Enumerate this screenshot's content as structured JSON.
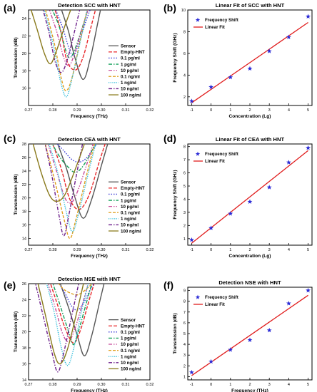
{
  "chart_data": [
    {
      "id": "a",
      "panel_label": "(a)",
      "type": "line",
      "title": "Detection SCC with HNT",
      "xlabel": "Frequency (THz)",
      "ylabel": "Transmission (dB)",
      "xlim": [
        0.27,
        0.32
      ],
      "ylim": [
        14,
        25
      ],
      "xticks": [
        "0.27",
        "0.28",
        "0.29",
        "0.30",
        "0.31",
        "0.32"
      ],
      "yticks": [
        "16",
        "18",
        "20",
        "22",
        "24"
      ],
      "legend_position": "right",
      "series": [
        {
          "name": "Sensor",
          "color": "#555555",
          "dash": "",
          "x": [
            0.283,
            0.2865,
            0.289,
            0.2925,
            0.2955,
            0.2985,
            0.3
          ],
          "y": [
            25.5,
            22.5,
            19.6,
            17.0,
            19.5,
            23.5,
            25.5
          ]
        },
        {
          "name": "Empty-HNT",
          "color": "#e8282b",
          "dash": "5,2",
          "x": [
            0.2805,
            0.2835,
            0.286,
            0.2895,
            0.2925,
            0.2955,
            0.298
          ],
          "y": [
            25.5,
            22.3,
            19.0,
            18.1,
            19.6,
            22.8,
            25.5
          ]
        },
        {
          "name": "0.1 pg/ml",
          "color": "#3b3bd6",
          "dash": "1.5,2",
          "x": [
            0.2805,
            0.284,
            0.2865,
            0.2885,
            0.2905,
            0.2935,
            0.296
          ],
          "y": [
            25.5,
            23.0,
            20.7,
            19.7,
            21.0,
            23.6,
            25.5
          ]
        },
        {
          "name": "1 pg/ml",
          "color": "#14a05a",
          "dash": "5,2,1.5,2",
          "x": [
            0.279,
            0.2825,
            0.2855,
            0.287,
            0.289,
            0.2925,
            0.295
          ],
          "y": [
            25.5,
            23.2,
            20.2,
            19.5,
            20.4,
            23.3,
            25.5
          ]
        },
        {
          "name": "10 pg/ml",
          "color": "#c84b9a",
          "dash": "5,2,1.5,2,1.5,2",
          "x": [
            0.278,
            0.2815,
            0.2845,
            0.2865,
            0.2885,
            0.292,
            0.295
          ],
          "y": [
            25.5,
            22.6,
            19.5,
            18.6,
            19.6,
            22.8,
            25.5
          ]
        },
        {
          "name": "0.1 ng/ml",
          "color": "#e0a020",
          "dash": "4,2",
          "x": [
            0.2765,
            0.2805,
            0.2835,
            0.2855,
            0.288,
            0.2915,
            0.2945
          ],
          "y": [
            25.5,
            21.3,
            17.1,
            15.7,
            17.3,
            21.8,
            25.5
          ]
        },
        {
          "name": "1 ng/ml",
          "color": "#22b8d8",
          "dash": "1.2,1.5",
          "x": [
            0.276,
            0.28,
            0.283,
            0.2855,
            0.288,
            0.2915,
            0.2945
          ],
          "y": [
            25.5,
            21.2,
            17.0,
            15.0,
            17.2,
            21.6,
            25.5
          ]
        },
        {
          "name": "10 ng/ml",
          "color": "#6b1d8a",
          "dash": "5,2,1.5,2",
          "x": [
            0.2755,
            0.2785,
            0.281,
            0.2835,
            0.286,
            0.289,
            0.2915
          ],
          "y": [
            25.5,
            22.3,
            19.0,
            17.8,
            19.3,
            22.6,
            25.5
          ]
        },
        {
          "name": "100 ng/ml",
          "color": "#8a7a1c",
          "dash": "",
          "x": [
            0.2705,
            0.2735,
            0.2765,
            0.279,
            0.2815,
            0.285,
            0.288
          ],
          "y": [
            25.5,
            22.8,
            20.0,
            18.8,
            20.3,
            23.2,
            25.5
          ]
        }
      ]
    },
    {
      "id": "b",
      "panel_label": "(b)",
      "type": "scatter",
      "title": "Linear Fit of SCC with HNT",
      "xlabel": "Concentration (Lg)",
      "ylabel": "Frequency Shift (GHz)",
      "xlim": [
        -1.2,
        5.2
      ],
      "ylim": [
        1.2,
        10
      ],
      "xticks": [
        "-1",
        "0",
        "1",
        "2",
        "3",
        "4",
        "5"
      ],
      "yticks": [
        "2",
        "4",
        "6",
        "8",
        "10"
      ],
      "legend_position": "top-left",
      "series": [
        {
          "name": "Frequency Shift",
          "color": "#2b2bd6",
          "x": [
            -1,
            0,
            1,
            2,
            3,
            4,
            5
          ],
          "y": [
            1.6,
            2.9,
            3.8,
            4.6,
            6.2,
            7.5,
            9.4
          ]
        },
        {
          "name": "Linear Fit",
          "color": "#e01b1b",
          "x": [
            -1,
            5
          ],
          "y": [
            1.45,
            8.85
          ]
        }
      ]
    },
    {
      "id": "c",
      "panel_label": "(c)",
      "type": "line",
      "title": "Detection CEA with HNT",
      "xlabel": "Frequency (THz)",
      "ylabel": "Transmission (dB)",
      "xlim": [
        0.27,
        0.32
      ],
      "ylim": [
        13,
        28
      ],
      "xticks": [
        "0.27",
        "0.28",
        "0.29",
        "0.30",
        "0.31",
        "0.32"
      ],
      "yticks": [
        "14",
        "16",
        "18",
        "20",
        "22",
        "24",
        "26",
        "28"
      ],
      "legend_position": "right",
      "series": [
        {
          "name": "Sensor",
          "color": "#555555",
          "dash": "",
          "x": [
            0.2815,
            0.2855,
            0.289,
            0.2925,
            0.296,
            0.3,
            0.303
          ],
          "y": [
            28.5,
            24.5,
            20.2,
            17.0,
            19.8,
            24.8,
            28.5
          ]
        },
        {
          "name": "Empty-HNT",
          "color": "#e8282b",
          "dash": "5,2",
          "x": [
            0.2795,
            0.2835,
            0.287,
            0.291,
            0.295,
            0.299,
            0.302
          ],
          "y": [
            28.5,
            24.3,
            19.8,
            18.3,
            20.5,
            25.2,
            28.5
          ]
        },
        {
          "name": "0.1 pg/ml",
          "color": "#3b3bd6",
          "dash": "1.5,2",
          "x": [
            0.2805,
            0.2845,
            0.2875,
            0.2905,
            0.2935,
            0.2965,
            0.299
          ],
          "y": [
            28.5,
            27.0,
            25.8,
            25.3,
            25.8,
            27.2,
            28.5
          ]
        },
        {
          "name": "1 pg/ml",
          "color": "#14a05a",
          "dash": "5,2,1.5,2",
          "x": [
            0.279,
            0.283,
            0.2865,
            0.289,
            0.2915,
            0.295,
            0.298
          ],
          "y": [
            28.5,
            26.0,
            24.5,
            23.8,
            24.3,
            26.2,
            28.5
          ]
        },
        {
          "name": "10 pg/ml",
          "color": "#c84b9a",
          "dash": "5,2,1.5,2,1.5,2",
          "x": [
            0.2775,
            0.2815,
            0.285,
            0.2875,
            0.29,
            0.294,
            0.297
          ],
          "y": [
            28.5,
            24.0,
            20.0,
            19.3,
            20.8,
            25.0,
            28.5
          ]
        },
        {
          "name": "0.1 ng/ml",
          "color": "#e0a020",
          "dash": "4,2",
          "x": [
            0.2765,
            0.2805,
            0.2845,
            0.287,
            0.2895,
            0.2935,
            0.2975
          ],
          "y": [
            28.5,
            23.0,
            17.0,
            14.0,
            16.8,
            22.8,
            28.5
          ]
        },
        {
          "name": "1 ng/ml",
          "color": "#22b8d8",
          "dash": "1.2,1.5",
          "x": [
            0.278,
            0.282,
            0.2855,
            0.288,
            0.2905,
            0.2945,
            0.298
          ],
          "y": [
            28.5,
            23.8,
            18.0,
            15.0,
            17.5,
            23.5,
            28.5
          ]
        },
        {
          "name": "10 ng/ml",
          "color": "#6b1d8a",
          "dash": "5,2,1.5,2",
          "x": [
            0.2765,
            0.2795,
            0.2825,
            0.2845,
            0.2865,
            0.2895,
            0.2925
          ],
          "y": [
            28.5,
            23.5,
            17.5,
            14.4,
            17.3,
            23.0,
            28.5
          ]
        },
        {
          "name": "100 ng/ml",
          "color": "#8a7a1c",
          "dash": "",
          "x": [
            0.2715,
            0.275,
            0.2785,
            0.2815,
            0.285,
            0.2895,
            0.2935
          ],
          "y": [
            28.5,
            24.0,
            20.5,
            19.5,
            20.5,
            24.5,
            28.5
          ]
        }
      ]
    },
    {
      "id": "d",
      "panel_label": "(d)",
      "type": "scatter",
      "title": "Linear Fit of CEA with HNT",
      "xlabel": "Concentration (Lg)",
      "ylabel": "Frequency Shift (GHz)",
      "xlim": [
        -1.2,
        5.2
      ],
      "ylim": [
        0.5,
        8.2
      ],
      "xticks": [
        "-1",
        "0",
        "1",
        "2",
        "3",
        "4",
        "5"
      ],
      "yticks": [
        "1",
        "2",
        "3",
        "4",
        "5",
        "6",
        "7",
        "8"
      ],
      "legend_position": "top-left",
      "series": [
        {
          "name": "Frequency Shift",
          "color": "#2b2bd6",
          "x": [
            -1,
            0,
            1,
            2,
            3,
            4,
            5
          ],
          "y": [
            0.9,
            1.8,
            2.9,
            3.8,
            4.9,
            6.8,
            7.9
          ]
        },
        {
          "name": "Linear Fit",
          "color": "#e01b1b",
          "x": [
            -1,
            5
          ],
          "y": [
            0.65,
            7.7
          ]
        }
      ]
    },
    {
      "id": "e",
      "panel_label": "(e)",
      "type": "line",
      "title": "Detection NSE with HNT",
      "xlabel": "Frequency (THz)",
      "ylabel": "Transmission (dB)",
      "xlim": [
        0.27,
        0.32
      ],
      "ylim": [
        14,
        26
      ],
      "xticks": [
        "0.27",
        "0.28",
        "0.29",
        "0.30",
        "0.31",
        "0.32"
      ],
      "yticks": [
        "14",
        "16",
        "18",
        "20",
        "22",
        "24",
        "26"
      ],
      "legend_position": "right",
      "series": [
        {
          "name": "Sensor",
          "color": "#555555",
          "dash": "",
          "x": [
            0.2825,
            0.2865,
            0.29,
            0.293,
            0.296,
            0.2995,
            0.3015
          ],
          "y": [
            26.5,
            23.0,
            19.6,
            17.0,
            19.5,
            24.0,
            26.5
          ]
        },
        {
          "name": "Empty-HNT",
          "color": "#e8282b",
          "dash": "5,2",
          "x": [
            0.2785,
            0.282,
            0.285,
            0.2885,
            0.2915,
            0.295,
            0.2975
          ],
          "y": [
            26.5,
            23.3,
            20.5,
            18.6,
            20.3,
            24.0,
            26.5
          ]
        },
        {
          "name": "0.1 pg/ml",
          "color": "#3b3bd6",
          "dash": "1.5,2",
          "x": [
            0.2815,
            0.285,
            0.2875,
            0.29,
            0.2925,
            0.2955,
            0.298
          ],
          "y": [
            26.5,
            24.8,
            23.3,
            22.7,
            23.5,
            25.3,
            26.5
          ]
        },
        {
          "name": "1 pg/ml",
          "color": "#14a05a",
          "dash": "5,2,1.5,2",
          "x": [
            0.2795,
            0.283,
            0.2865,
            0.2885,
            0.2905,
            0.294,
            0.2965
          ],
          "y": [
            26.5,
            23.3,
            20.0,
            18.4,
            20.0,
            23.8,
            26.5
          ]
        },
        {
          "name": "10 pg/ml",
          "color": "#c84b9a",
          "dash": "5,2,1.5,2,1.5,2",
          "x": [
            0.2775,
            0.281,
            0.284,
            0.2865,
            0.289,
            0.2925,
            0.295
          ],
          "y": [
            26.5,
            23.0,
            19.8,
            18.8,
            20.3,
            23.8,
            26.5
          ]
        },
        {
          "name": "0.1 ng/ml",
          "color": "#e0a020",
          "dash": "4,2",
          "x": [
            0.281,
            0.2845,
            0.2875,
            0.29,
            0.2925,
            0.2955,
            0.298
          ],
          "y": [
            26.5,
            25.3,
            24.8,
            24.6,
            25.0,
            25.8,
            26.5
          ]
        },
        {
          "name": "1 ng/ml",
          "color": "#22b8d8",
          "dash": "1.2,1.5",
          "x": [
            0.277,
            0.2805,
            0.2835,
            0.286,
            0.2885,
            0.292,
            0.295
          ],
          "y": [
            26.5,
            22.5,
            18.0,
            15.8,
            17.8,
            22.8,
            26.5
          ]
        },
        {
          "name": "10 ng/ml",
          "color": "#6b1d8a",
          "dash": "5,2,1.5,2",
          "x": [
            0.2725,
            0.276,
            0.2795,
            0.282,
            0.2845,
            0.288,
            0.291
          ],
          "y": [
            26.5,
            22.0,
            17.6,
            15.0,
            17.4,
            22.3,
            26.5
          ]
        },
        {
          "name": "100 ng/ml",
          "color": "#8a7a1c",
          "dash": "",
          "x": [
            0.2735,
            0.277,
            0.2805,
            0.283,
            0.286,
            0.29,
            0.293
          ],
          "y": [
            26.5,
            22.0,
            17.4,
            16.0,
            17.8,
            22.6,
            26.5
          ]
        }
      ]
    },
    {
      "id": "f",
      "panel_label": "(f)",
      "type": "scatter",
      "title": "Detection NSE with HNT",
      "xlabel": "Frequency (THz)",
      "ylabel": "Transmission (dB)",
      "xlim": [
        -1.2,
        5.2
      ],
      "ylim": [
        0.7,
        9.3
      ],
      "xticks": [
        "-1",
        "0",
        "1",
        "2",
        "3",
        "4",
        "5"
      ],
      "yticks": [
        "1",
        "2",
        "3",
        "4",
        "5",
        "6",
        "7",
        "8",
        "9"
      ],
      "legend_position": "top-left",
      "series": [
        {
          "name": "Frequency Shift",
          "color": "#2b2bd6",
          "x": [
            -1,
            0,
            1,
            2,
            3,
            4,
            5
          ],
          "y": [
            1.4,
            2.4,
            3.5,
            4.4,
            5.3,
            7.8,
            9.0
          ]
        },
        {
          "name": "Linear Fit",
          "color": "#e01b1b",
          "x": [
            -1,
            5
          ],
          "y": [
            1.1,
            8.55
          ]
        }
      ]
    }
  ]
}
